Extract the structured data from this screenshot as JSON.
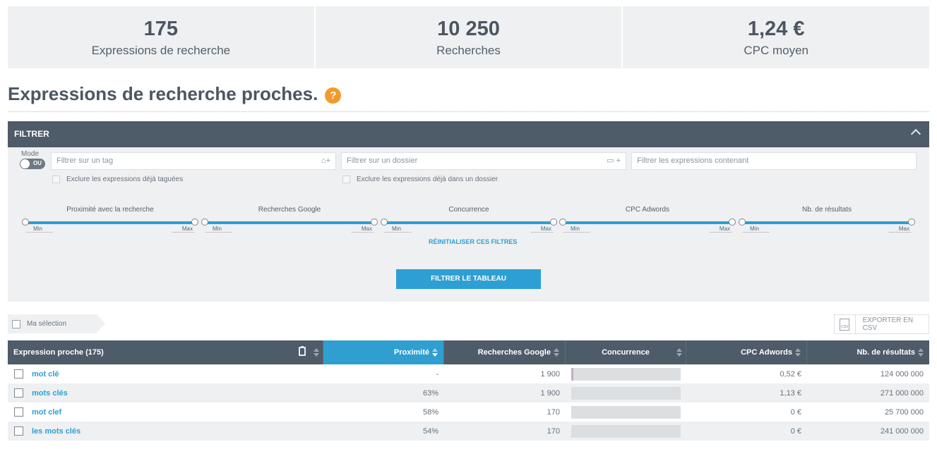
{
  "stats": [
    {
      "value": "175",
      "label": "Expressions de recherche"
    },
    {
      "value": "10 250",
      "label": "Recherches"
    },
    {
      "value": "1,24 €",
      "label": "CPC moyen"
    }
  ],
  "section": {
    "title": "Expressions de recherche proches.",
    "help": "?"
  },
  "filter": {
    "header": "FILTRER",
    "mode_label": "Mode",
    "mode_value": "OU",
    "tag_placeholder": "Filtrer sur un tag",
    "folder_placeholder": "Filtrer sur un dossier",
    "contains_placeholder": "Filtrer les expressions contenant",
    "exclude_tagged": "Exclure les expressions déjà taguées",
    "exclude_folder": "Exclure les expressions déjà dans un dossier",
    "sliders": [
      {
        "label": "Proximité avec la recherche",
        "min": "Min",
        "max": "Max"
      },
      {
        "label": "Recherches Google",
        "min": "Min",
        "max": "Max"
      },
      {
        "label": "Concurrence",
        "min": "Min",
        "max": "Max"
      },
      {
        "label": "CPC Adwords",
        "min": "Min",
        "max": "Max"
      },
      {
        "label": "Nb. de résultats",
        "min": "Min",
        "max": "Max"
      }
    ],
    "reset": "RÉINITIALISER CES FILTRES",
    "submit": "FILTRER LE TABLEAU"
  },
  "selection": {
    "label": "Ma sélection"
  },
  "export": {
    "label": "EXPORTER EN CSV",
    "icon": "csv-file-icon",
    "icon_text": "CSV"
  },
  "table": {
    "headers": {
      "expression": "Expression proche (175)",
      "proximite": "Proximité",
      "recherches": "Recherches Google",
      "concurrence": "Concurrence",
      "cpc": "CPC Adwords",
      "resultats": "Nb. de résultats"
    },
    "rows": [
      {
        "expression": "mot clé",
        "proximite": "-",
        "recherches": "1 900",
        "concurrence": 0.02,
        "cpc": "0,52 €",
        "resultats": "124 000 000"
      },
      {
        "expression": "mots clés",
        "proximite": "63%",
        "recherches": "1 900",
        "concurrence": 0.0,
        "cpc": "1,13 €",
        "resultats": "271 000 000"
      },
      {
        "expression": "mot clef",
        "proximite": "58%",
        "recherches": "170",
        "concurrence": 0.0,
        "cpc": "0 €",
        "resultats": "25 700 000"
      },
      {
        "expression": "les mots clés",
        "proximite": "54%",
        "recherches": "170",
        "concurrence": 0.0,
        "cpc": "0 €",
        "resultats": "241 000 000"
      }
    ]
  },
  "colors": {
    "accent": "#2d9fd2",
    "header_bg": "#4e5b68",
    "help": "#f39a2b"
  }
}
